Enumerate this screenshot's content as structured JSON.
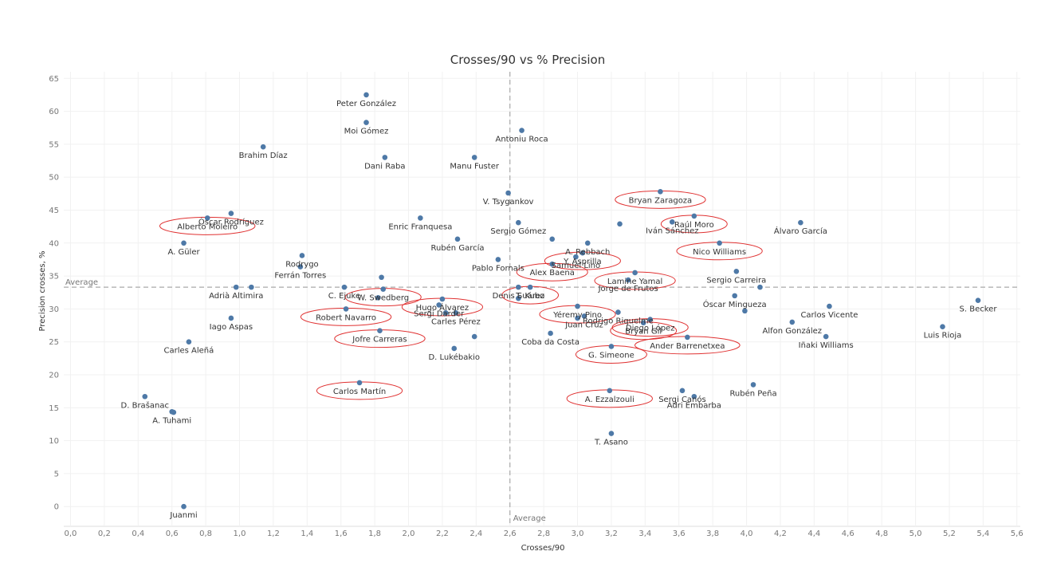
{
  "chart_data": {
    "type": "scatter",
    "title": "Crosses/90 vs % Precision",
    "xlabel": "Crosses/90",
    "ylabel": "Precision crosses, %",
    "xlim": [
      -0.04,
      5.62
    ],
    "ylim": [
      -3,
      66
    ],
    "xticks": [
      "0,0",
      "0,2",
      "0,4",
      "0,6",
      "0,8",
      "1,0",
      "1,2",
      "1,4",
      "1,6",
      "1,8",
      "2,0",
      "2,2",
      "2,4",
      "2,6",
      "2,8",
      "3,0",
      "3,2",
      "3,4",
      "3,6",
      "3,8",
      "4,0",
      "4,2",
      "4,4",
      "4,6",
      "4,8",
      "5,0",
      "5,2",
      "5,4",
      "5,6"
    ],
    "yticks": [
      "0",
      "5",
      "10",
      "15",
      "20",
      "25",
      "30",
      "35",
      "40",
      "45",
      "50",
      "55",
      "60",
      "65"
    ],
    "grid": true,
    "point_color": "#4e79a7",
    "highlight_color": "#e03131",
    "reference_lines": {
      "x": {
        "value": 2.6,
        "label": "Average"
      },
      "y": {
        "value": 33.3,
        "label": "Average"
      }
    },
    "points": [
      {
        "name": "Peter González",
        "x": 1.75,
        "y": 62.5,
        "highlight": false
      },
      {
        "name": "Moi Gómez",
        "x": 1.75,
        "y": 58.3,
        "highlight": false
      },
      {
        "name": "Antoniu Roca",
        "x": 2.67,
        "y": 57.1,
        "highlight": false
      },
      {
        "name": "Brahim Díaz",
        "x": 1.14,
        "y": 54.6,
        "highlight": false
      },
      {
        "name": "Dani Raba",
        "x": 1.86,
        "y": 53.0,
        "highlight": false
      },
      {
        "name": "Manu Fuster",
        "x": 2.39,
        "y": 53.0,
        "highlight": false
      },
      {
        "name": "Bryan Zaragoza",
        "x": 3.49,
        "y": 47.8,
        "highlight": true
      },
      {
        "name": "V. Tsygankov",
        "x": 2.59,
        "y": 47.6,
        "highlight": false
      },
      {
        "name": "Óscar Rodríguez",
        "x": 0.95,
        "y": 44.5,
        "highlight": false
      },
      {
        "name": "Raúl Moro",
        "x": 3.69,
        "y": 44.1,
        "highlight": true
      },
      {
        "name": "Alberto Moleiro",
        "x": 0.81,
        "y": 43.8,
        "highlight": true
      },
      {
        "name": "Enric Franquesa",
        "x": 2.07,
        "y": 43.8,
        "highlight": false
      },
      {
        "name": "Iván Sánchez",
        "x": 3.56,
        "y": 43.2,
        "highlight": false
      },
      {
        "name": "Sergio Gómez",
        "x": 2.65,
        "y": 43.1,
        "highlight": false
      },
      {
        "name": "Álvaro García",
        "x": 4.32,
        "y": 43.1,
        "highlight": false
      },
      {
        "name": "",
        "x": 3.25,
        "y": 42.9,
        "highlight": false
      },
      {
        "name": "Rubén García",
        "x": 2.29,
        "y": 40.6,
        "highlight": false
      },
      {
        "name": "",
        "x": 2.85,
        "y": 40.6,
        "highlight": false
      },
      {
        "name": "A. Rebbach",
        "x": 3.06,
        "y": 40.0,
        "highlight": false
      },
      {
        "name": "A. Güler",
        "x": 0.67,
        "y": 40.0,
        "highlight": false
      },
      {
        "name": "Nico Williams",
        "x": 3.84,
        "y": 40.0,
        "highlight": true
      },
      {
        "name": "Rodrygo",
        "x": 1.37,
        "y": 38.1,
        "highlight": false
      },
      {
        "name": "Samuel Lino",
        "x": 2.99,
        "y": 37.9,
        "highlight": false
      },
      {
        "name": "Y. Asprilla",
        "x": 3.03,
        "y": 38.5,
        "highlight": true
      },
      {
        "name": "Pablo Fornals",
        "x": 2.53,
        "y": 37.5,
        "highlight": false
      },
      {
        "name": "Alex Baena",
        "x": 2.85,
        "y": 36.8,
        "highlight": true
      },
      {
        "name": "Ferrán Torres",
        "x": 1.36,
        "y": 36.4,
        "highlight": false
      },
      {
        "name": "Sergio Carreira",
        "x": 3.94,
        "y": 35.7,
        "highlight": false
      },
      {
        "name": "Lamine Yamal",
        "x": 3.34,
        "y": 35.5,
        "highlight": true
      },
      {
        "name": "",
        "x": 1.84,
        "y": 34.8,
        "highlight": false
      },
      {
        "name": "Jorge de Frutos",
        "x": 3.3,
        "y": 34.4,
        "highlight": false
      },
      {
        "name": "Denis Suárez",
        "x": 2.65,
        "y": 33.3,
        "highlight": false
      },
      {
        "name": "T. Kubo",
        "x": 2.72,
        "y": 33.3,
        "highlight": true
      },
      {
        "name": "Adrià Altimira",
        "x": 0.98,
        "y": 33.3,
        "highlight": false
      },
      {
        "name": "",
        "x": 1.07,
        "y": 33.3,
        "highlight": false
      },
      {
        "name": "C. Ejuke",
        "x": 1.62,
        "y": 33.3,
        "highlight": false
      },
      {
        "name": "",
        "x": 4.08,
        "y": 33.3,
        "highlight": false
      },
      {
        "name": "W. Swedberg",
        "x": 1.85,
        "y": 33.0,
        "highlight": true
      },
      {
        "name": "Óscar Mingueza",
        "x": 3.93,
        "y": 32.0,
        "highlight": false
      },
      {
        "name": "",
        "x": 1.82,
        "y": 31.7,
        "highlight": false
      },
      {
        "name": "Hugo Álvarez",
        "x": 2.2,
        "y": 31.5,
        "highlight": true
      },
      {
        "name": "",
        "x": 2.65,
        "y": 31.6,
        "highlight": false
      },
      {
        "name": "Sergi Darder",
        "x": 2.18,
        "y": 30.6,
        "highlight": false
      },
      {
        "name": "Yéremy Pino",
        "x": 3.0,
        "y": 30.4,
        "highlight": true
      },
      {
        "name": "Carlos Vicente",
        "x": 4.49,
        "y": 30.4,
        "highlight": false
      },
      {
        "name": "S. Becker",
        "x": 5.37,
        "y": 31.3,
        "highlight": false
      },
      {
        "name": "Robert Navarro",
        "x": 1.63,
        "y": 30.0,
        "highlight": true
      },
      {
        "name": "",
        "x": 3.99,
        "y": 29.7,
        "highlight": false
      },
      {
        "name": "Rodrigo Riquelme",
        "x": 3.24,
        "y": 29.5,
        "highlight": false
      },
      {
        "name": "Carles Pérez",
        "x": 2.28,
        "y": 29.4,
        "highlight": false
      },
      {
        "name": "",
        "x": 2.22,
        "y": 29.4,
        "highlight": false
      },
      {
        "name": "Juan Cruz",
        "x": 3.04,
        "y": 28.9,
        "highlight": false
      },
      {
        "name": "",
        "x": 3.0,
        "y": 28.6,
        "highlight": false
      },
      {
        "name": "Iago Aspas",
        "x": 0.95,
        "y": 28.6,
        "highlight": false
      },
      {
        "name": "Diego López",
        "x": 3.43,
        "y": 28.4,
        "highlight": true
      },
      {
        "name": "Bryan Gil",
        "x": 3.39,
        "y": 27.9,
        "highlight": true
      },
      {
        "name": "Alfon González",
        "x": 4.27,
        "y": 28.0,
        "highlight": false
      },
      {
        "name": "Luis Rioja",
        "x": 5.16,
        "y": 27.3,
        "highlight": false
      },
      {
        "name": "Jofre Carreras",
        "x": 1.83,
        "y": 26.7,
        "highlight": true
      },
      {
        "name": "Coba da Costa",
        "x": 2.84,
        "y": 26.3,
        "highlight": false
      },
      {
        "name": "Ander Barrenetxea",
        "x": 3.65,
        "y": 25.7,
        "highlight": true
      },
      {
        "name": "Iñaki Williams",
        "x": 4.47,
        "y": 25.8,
        "highlight": false
      },
      {
        "name": "",
        "x": 2.39,
        "y": 25.8,
        "highlight": false
      },
      {
        "name": "Carles Aleñá",
        "x": 0.7,
        "y": 25.0,
        "highlight": false
      },
      {
        "name": "G. Simeone",
        "x": 3.2,
        "y": 24.3,
        "highlight": true
      },
      {
        "name": "D. Lukébakio",
        "x": 2.27,
        "y": 24.0,
        "highlight": false
      },
      {
        "name": "Carlos Martín",
        "x": 1.71,
        "y": 18.8,
        "highlight": true
      },
      {
        "name": "Rubén Peña",
        "x": 4.04,
        "y": 18.5,
        "highlight": false
      },
      {
        "name": "Sergi Canós",
        "x": 3.62,
        "y": 17.6,
        "highlight": false
      },
      {
        "name": "A. Ezzalzouli",
        "x": 3.19,
        "y": 17.6,
        "highlight": true
      },
      {
        "name": "Adri Embarba",
        "x": 3.69,
        "y": 16.7,
        "highlight": false
      },
      {
        "name": "D. Brašanac",
        "x": 0.44,
        "y": 16.7,
        "highlight": false
      },
      {
        "name": "A. Tuhami",
        "x": 0.6,
        "y": 14.4,
        "highlight": false
      },
      {
        "name": "",
        "x": 0.61,
        "y": 14.3,
        "highlight": false
      },
      {
        "name": "T. Asano",
        "x": 3.2,
        "y": 11.1,
        "highlight": false
      },
      {
        "name": "Juanmi",
        "x": 0.67,
        "y": 0.0,
        "highlight": false
      }
    ]
  }
}
